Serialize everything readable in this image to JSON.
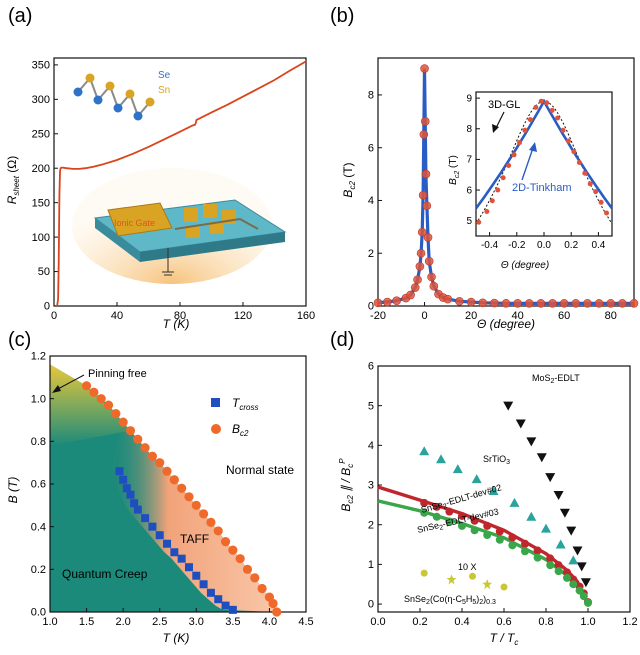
{
  "chart_data": [
    {
      "panel_label": "(a)",
      "type": "line",
      "xlabel": "T (K)",
      "ylabel_main": "R",
      "ylabel_sub": "sheet",
      "ylabel_unit": "(Ω)",
      "xlim": [
        0,
        160
      ],
      "ylim": [
        0,
        360
      ],
      "xticks": [
        0,
        40,
        80,
        120,
        160
      ],
      "yticks": [
        0,
        50,
        100,
        150,
        200,
        250,
        300,
        350
      ],
      "series": [
        {
          "color": "#d9441c",
          "x": [
            2.0,
            2.6,
            3.0,
            3.4,
            3.8,
            4.2,
            5,
            8,
            12,
            16,
            20,
            25,
            30,
            40,
            50,
            60,
            70,
            80,
            88,
            89.5,
            90,
            90.5,
            100,
            110,
            120,
            130,
            140,
            150,
            160
          ],
          "y": [
            0,
            10,
            60,
            160,
            195,
            200,
            201,
            200,
            199,
            199,
            200,
            202,
            205,
            212,
            221,
            231,
            242,
            253,
            262,
            263,
            266,
            270,
            281,
            292,
            304,
            316,
            328,
            342,
            355
          ]
        }
      ],
      "annotations": {
        "se_label": "Se",
        "sn_label": "Sn",
        "gate_label": "Ionic Gate",
        "se_color": "#2f73c9",
        "sn_color": "#d9a323"
      }
    },
    {
      "panel_label": "(b)",
      "type": "scatter",
      "xlabel": "Θ (degree)",
      "ylabel_main": "B",
      "ylabel_sub": "c2",
      "ylabel_unit": "(T)",
      "xlim": [
        -20,
        90
      ],
      "ylim": [
        0,
        9.4
      ],
      "xticks": [
        -20,
        0,
        20,
        40,
        60,
        80
      ],
      "yticks": [
        0,
        2,
        4,
        6,
        8
      ],
      "points": {
        "x": [
          -20,
          -16,
          -12,
          -8,
          -6,
          -4,
          -3,
          -2,
          -1.5,
          -1,
          -0.6,
          -0.3,
          0,
          0.3,
          0.6,
          1,
          1.5,
          2,
          3,
          4,
          6,
          8,
          10,
          15,
          20,
          25,
          30,
          35,
          40,
          45,
          50,
          55,
          60,
          65,
          70,
          75,
          80,
          85,
          90
        ],
        "y": [
          0.12,
          0.15,
          0.2,
          0.3,
          0.42,
          0.7,
          1.0,
          1.5,
          2.0,
          2.8,
          4.2,
          6.5,
          9.0,
          7.0,
          5.0,
          3.8,
          2.6,
          1.7,
          1.1,
          0.75,
          0.45,
          0.32,
          0.26,
          0.18,
          0.15,
          0.12,
          0.11,
          0.1,
          0.1,
          0.1,
          0.1,
          0.1,
          0.1,
          0.1,
          0.1,
          0.1,
          0.1,
          0.1,
          0.1
        ],
        "color": "#e0533a"
      },
      "fit_color": "#2a5cc6",
      "inset": {
        "xlabel": "Θ (degree)",
        "ylabel_main": "B",
        "ylabel_sub": "c2",
        "ylabel_unit": "(T)",
        "xlim": [
          -0.5,
          0.5
        ],
        "ylim": [
          4.5,
          9.2
        ],
        "xticks": [
          -0.4,
          -0.2,
          0.0,
          0.2,
          0.4
        ],
        "yticks": [
          5,
          6,
          7,
          8,
          9
        ],
        "label_3dgl": "3D-GL",
        "label_2dt": "2D-Tinkham",
        "points": {
          "x": [
            -0.48,
            -0.42,
            -0.38,
            -0.34,
            -0.3,
            -0.26,
            -0.22,
            -0.18,
            -0.14,
            -0.1,
            -0.06,
            -0.02,
            0.02,
            0.06,
            0.1,
            0.14,
            0.18,
            0.22,
            0.26,
            0.3,
            0.34,
            0.38,
            0.42,
            0.46
          ],
          "y": [
            4.95,
            5.3,
            5.65,
            6.0,
            6.4,
            6.8,
            7.15,
            7.55,
            7.95,
            8.3,
            8.7,
            8.9,
            8.85,
            8.6,
            8.35,
            7.95,
            7.6,
            7.25,
            6.9,
            6.55,
            6.2,
            5.95,
            5.6,
            5.25
          ]
        }
      }
    },
    {
      "panel_label": "(c)",
      "type": "scatter",
      "xlabel": "T (K)",
      "ylabel": "B (T)",
      "xlim": [
        1.0,
        4.5
      ],
      "ylim": [
        0.0,
        1.2
      ],
      "xticks": [
        1.0,
        1.5,
        2.0,
        2.5,
        3.0,
        3.5,
        4.0,
        4.5
      ],
      "yticks": [
        0.0,
        0.2,
        0.4,
        0.6,
        0.8,
        1.0,
        1.2
      ],
      "legend": [
        {
          "label_main": "T",
          "label_sub": "cross",
          "color": "#1f4fbf",
          "marker": "square"
        },
        {
          "label_main": "B",
          "label_sub": "c2",
          "color": "#ef6a2a",
          "marker": "circle"
        }
      ],
      "series": [
        {
          "name_main": "B",
          "name_sub": "c2",
          "color": "#ef6a2a",
          "x": [
            1.5,
            1.6,
            1.7,
            1.8,
            1.9,
            2.0,
            2.1,
            2.2,
            2.3,
            2.4,
            2.5,
            2.6,
            2.7,
            2.8,
            2.9,
            3.0,
            3.1,
            3.2,
            3.3,
            3.4,
            3.5,
            3.6,
            3.7,
            3.8,
            3.9,
            4.0,
            4.05,
            4.1
          ],
          "y": [
            1.06,
            1.03,
            1.0,
            0.97,
            0.93,
            0.89,
            0.85,
            0.81,
            0.77,
            0.73,
            0.7,
            0.66,
            0.62,
            0.58,
            0.54,
            0.5,
            0.46,
            0.42,
            0.38,
            0.33,
            0.29,
            0.25,
            0.2,
            0.16,
            0.11,
            0.07,
            0.04,
            0.0
          ]
        },
        {
          "name_main": "T",
          "name_sub": "cross",
          "color": "#1f4fbf",
          "x": [
            1.95,
            2.0,
            2.05,
            2.1,
            2.15,
            2.2,
            2.3,
            2.4,
            2.5,
            2.6,
            2.7,
            2.8,
            2.9,
            3.0,
            3.1,
            3.2,
            3.3,
            3.4,
            3.5
          ],
          "y": [
            0.66,
            0.62,
            0.58,
            0.55,
            0.51,
            0.48,
            0.44,
            0.4,
            0.36,
            0.32,
            0.28,
            0.25,
            0.21,
            0.17,
            0.13,
            0.09,
            0.06,
            0.03,
            0.01
          ]
        }
      ],
      "region_labels": {
        "pinning": "Pinning free",
        "normal": "Normal state",
        "taff": "TAFF",
        "creep": "Quantum Creep"
      },
      "region_colors": {
        "creep": "#1c8a7a",
        "pinning": "#e7c83a",
        "taff": "#f2a37a"
      }
    },
    {
      "panel_label": "(d)",
      "type": "scatter",
      "xlabel_main": "T / T",
      "xlabel_sub": "c",
      "ylabel": "B_c2∥ / B_c^P",
      "xlim": [
        0.0,
        1.2
      ],
      "ylim": [
        -0.2,
        6.0
      ],
      "xticks": [
        0.0,
        0.2,
        0.4,
        0.6,
        0.8,
        1.0,
        1.2
      ],
      "yticks": [
        0,
        1,
        2,
        3,
        4,
        5,
        6
      ],
      "series": [
        {
          "label": "MoS2-EDLT",
          "color": "#111111",
          "marker": "tri-down",
          "x": [
            0.62,
            0.68,
            0.73,
            0.78,
            0.82,
            0.86,
            0.89,
            0.92,
            0.95,
            0.97,
            0.99
          ],
          "y": [
            5.0,
            4.55,
            4.1,
            3.7,
            3.2,
            2.75,
            2.3,
            1.85,
            1.35,
            0.95,
            0.55
          ]
        },
        {
          "label": "SrTiO3",
          "color": "#2aa39c",
          "marker": "tri-up",
          "x": [
            0.22,
            0.3,
            0.38,
            0.47,
            0.55,
            0.65,
            0.73,
            0.8,
            0.87,
            0.93
          ],
          "y": [
            3.85,
            3.65,
            3.4,
            3.15,
            2.85,
            2.55,
            2.2,
            1.9,
            1.5,
            1.1
          ]
        },
        {
          "label": "SnSe2-EDLT-dev#02",
          "color": "#c0272d",
          "marker": "circle",
          "x": [
            0.22,
            0.28,
            0.34,
            0.4,
            0.46,
            0.52,
            0.58,
            0.64,
            0.7,
            0.76,
            0.82,
            0.86,
            0.9,
            0.93,
            0.96,
            0.98,
            1.0
          ],
          "y": [
            2.55,
            2.45,
            2.33,
            2.22,
            2.1,
            1.97,
            1.83,
            1.68,
            1.52,
            1.35,
            1.15,
            0.98,
            0.8,
            0.62,
            0.44,
            0.27,
            0.05
          ]
        },
        {
          "label": "SnSe2-EDLT-dev#03",
          "color": "#3aa64a",
          "marker": "circle",
          "x": [
            0.22,
            0.28,
            0.34,
            0.4,
            0.46,
            0.52,
            0.58,
            0.64,
            0.7,
            0.76,
            0.82,
            0.86,
            0.9,
            0.93,
            0.96,
            0.98,
            1.0
          ],
          "y": [
            2.3,
            2.2,
            2.08,
            1.97,
            1.86,
            1.74,
            1.62,
            1.48,
            1.33,
            1.17,
            0.98,
            0.83,
            0.66,
            0.5,
            0.34,
            0.2,
            0.03
          ]
        },
        {
          "label": "SnSe2(Co(η-C5H5)2)0.3",
          "color": "#c9c733",
          "marker": "mixed",
          "x": [
            0.22,
            0.35,
            0.45,
            0.52,
            0.6
          ],
          "y": [
            0.78,
            0.62,
            0.7,
            0.5,
            0.43
          ]
        }
      ],
      "fit_curves": [
        {
          "color": "#c0272d",
          "x": [
            0.0,
            0.2,
            0.4,
            0.6,
            0.8,
            0.9,
            0.95,
            1.0
          ],
          "y": [
            2.95,
            2.62,
            2.28,
            1.86,
            1.27,
            0.85,
            0.56,
            0.0
          ]
        },
        {
          "color": "#3aa64a",
          "x": [
            0.0,
            0.2,
            0.4,
            0.6,
            0.8,
            0.9,
            0.95,
            1.0
          ],
          "y": [
            2.6,
            2.35,
            2.03,
            1.67,
            1.12,
            0.72,
            0.46,
            0.0
          ]
        }
      ],
      "note": "10 X"
    }
  ]
}
